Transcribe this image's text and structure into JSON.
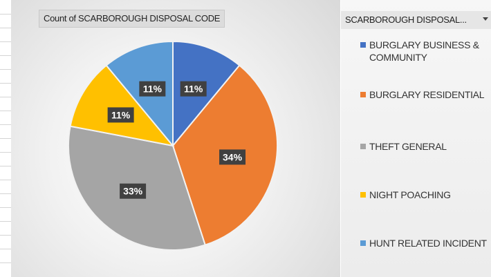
{
  "chart_data": {
    "type": "pie",
    "title": "Count of SCARBOROUGH DISPOSAL CODE",
    "legend_title": "SCARBOROUGH DISPOSAL...",
    "categories": [
      "BURGLARY BUSINESS & COMMUNITY",
      "BURGLARY RESIDENTIAL",
      "THEFT GENERAL",
      "NIGHT POACHING",
      "HUNT RELATED INCIDENT"
    ],
    "values": [
      11,
      34,
      33,
      11,
      11
    ],
    "value_labels": [
      "11%",
      "34%",
      "33%",
      "11%",
      "11%"
    ],
    "colors": [
      "#4472c4",
      "#ed7d31",
      "#a5a5a5",
      "#ffc000",
      "#5b9bd5"
    ],
    "legend": "right"
  }
}
